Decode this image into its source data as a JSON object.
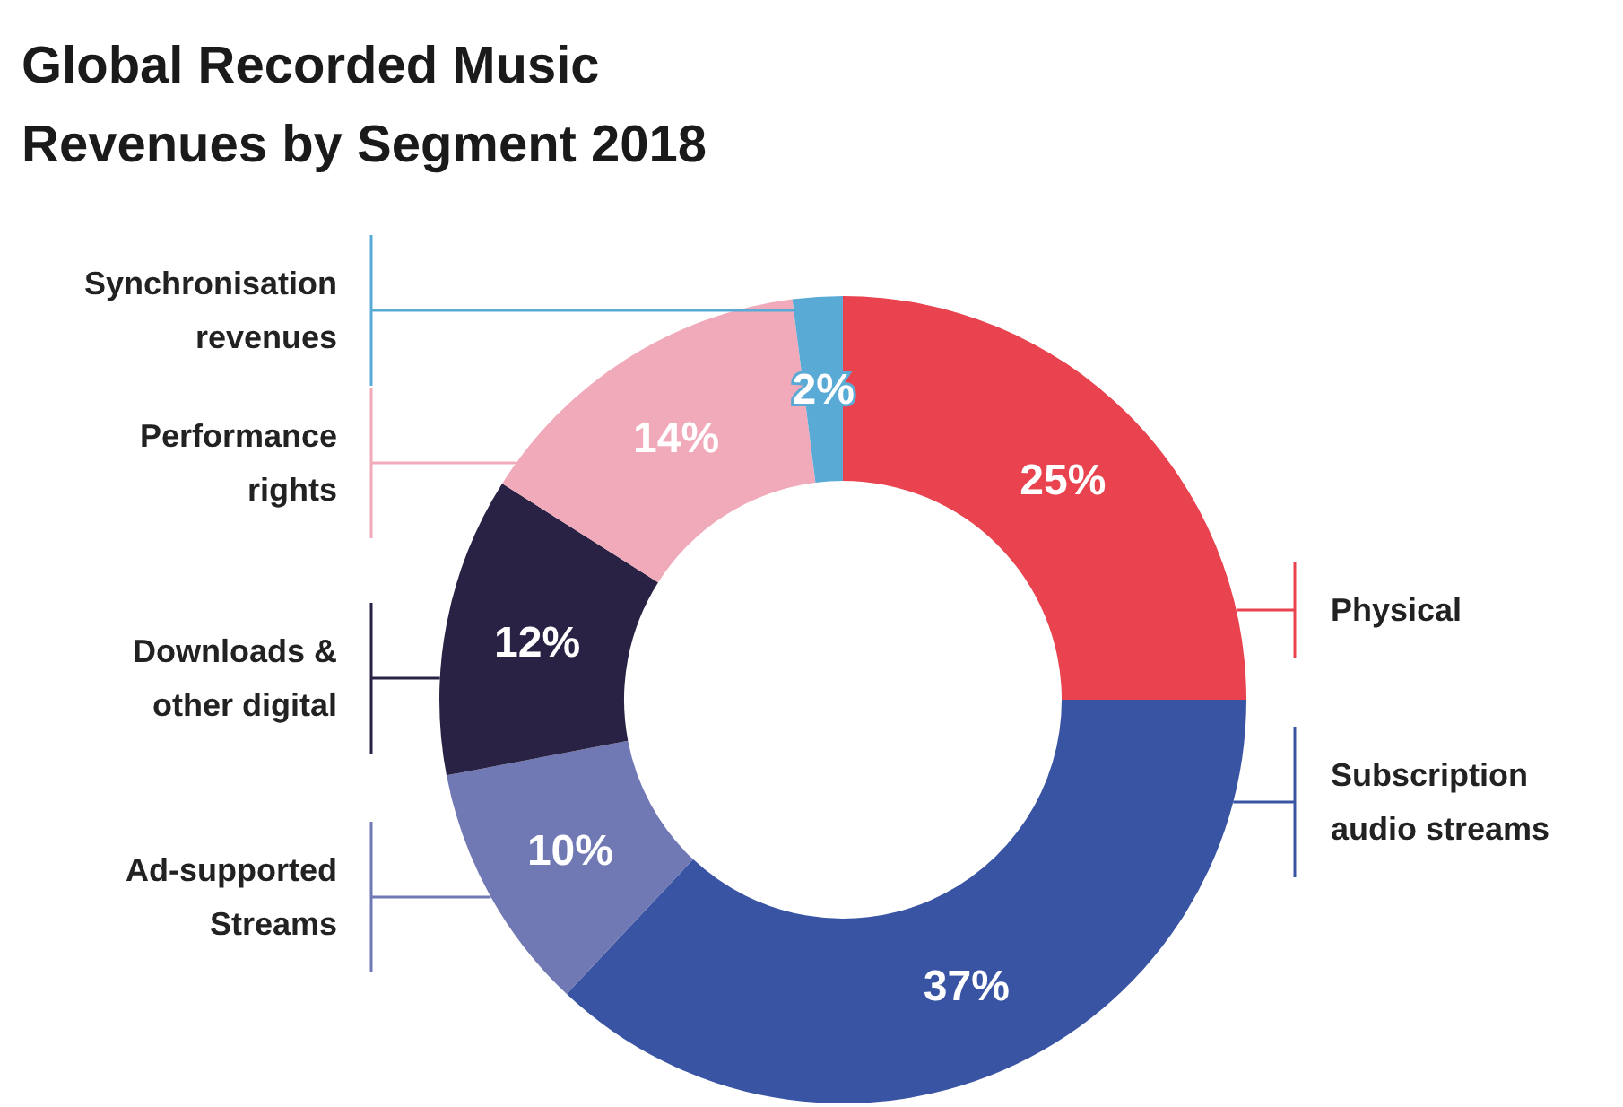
{
  "chart_data": {
    "type": "donut",
    "title": "Global Recorded Music Revenues by Segment 2018",
    "categories": [
      "Physical",
      "Subscription audio streams",
      "Ad-supported Streams",
      "Downloads & other digital",
      "Performance rights",
      "Synchronisation revenues"
    ],
    "values": [
      25,
      37,
      10,
      12,
      14,
      2
    ],
    "value_labels": [
      "25%",
      "37%",
      "10%",
      "12%",
      "14%",
      "2%"
    ],
    "colors": [
      "#e8434f",
      "#3a54a4",
      "#7079b4",
      "#2a2244",
      "#f1aab9",
      "#5aaad6"
    ]
  }
}
